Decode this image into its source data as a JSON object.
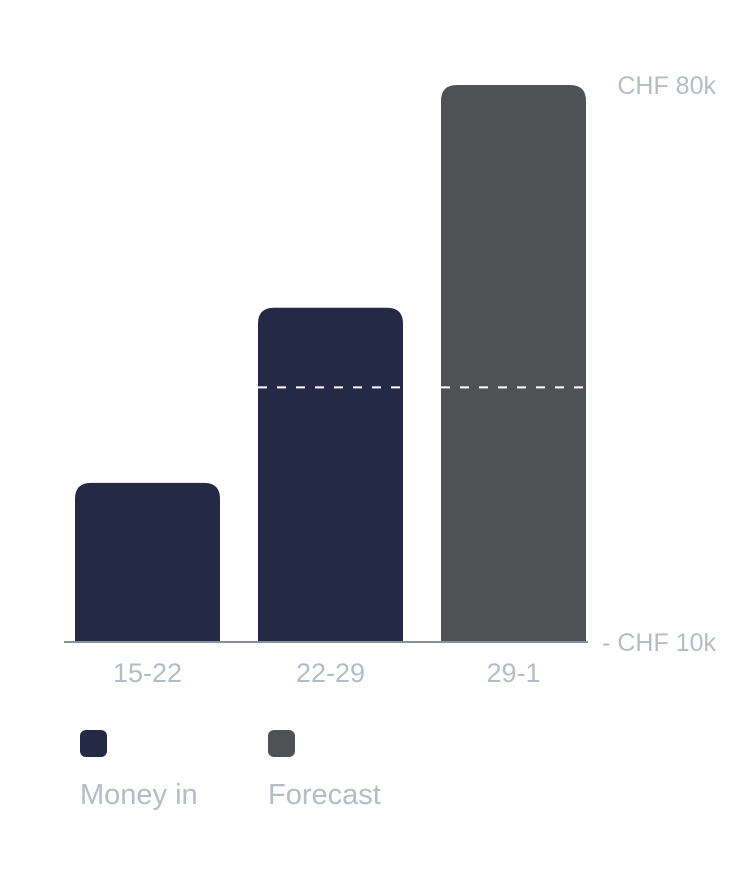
{
  "chart_data": {
    "type": "bar",
    "categories": [
      "15-22",
      "22-29",
      "29-1"
    ],
    "values": [
      30000,
      52000,
      80000
    ],
    "bar_series": [
      "Money in",
      "Money in",
      "Forecast"
    ],
    "ylim": [
      10000,
      80000
    ],
    "yticks": [
      {
        "value": 80000,
        "label": "CHF 80k"
      },
      {
        "value": 10000,
        "label": "- CHF 10k"
      }
    ],
    "reference_line": 42000,
    "series": [
      {
        "name": "Money in",
        "color": "#242945"
      },
      {
        "name": "Forecast",
        "color": "#505155"
      }
    ],
    "title": "",
    "xlabel": "",
    "ylabel": "",
    "grid": false,
    "legend_position": "bottom-left"
  },
  "legend": {
    "items": [
      {
        "label": "Money in",
        "color": "#242945"
      },
      {
        "label": "Forecast",
        "color": "#505155"
      }
    ]
  }
}
